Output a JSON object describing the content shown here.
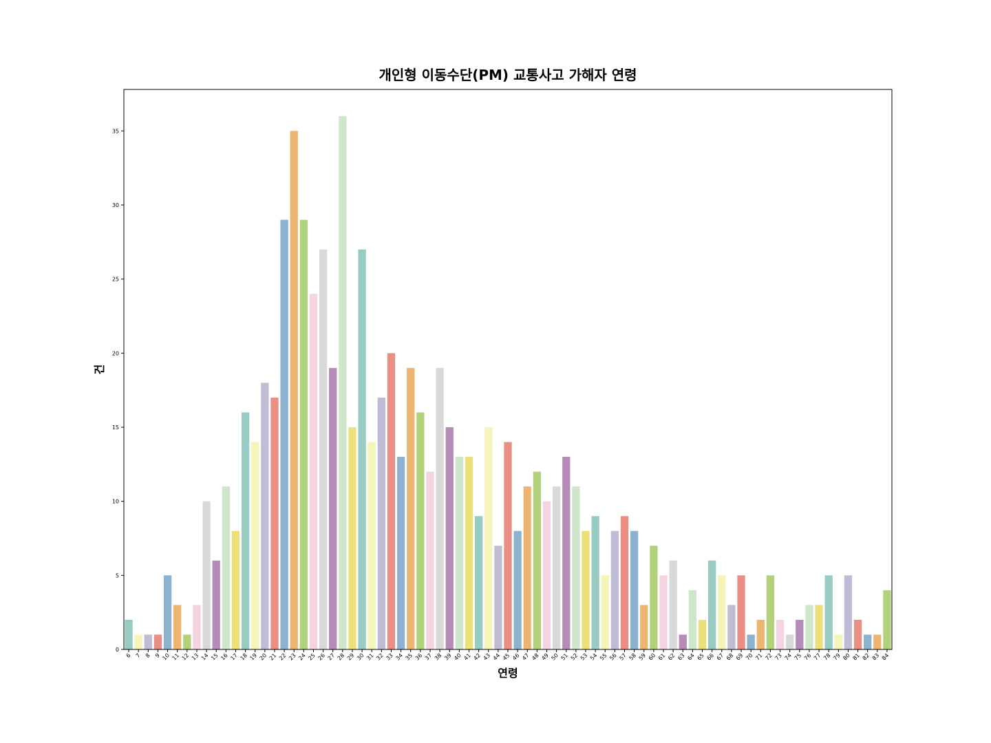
{
  "chart_data": {
    "type": "bar",
    "title": "개인형 이동수단(PM) 교통사고 가해자 연령",
    "xlabel": "연령",
    "ylabel": "건",
    "categories": [
      "6",
      "7",
      "8",
      "9",
      "10",
      "11",
      "12",
      "13",
      "14",
      "15",
      "16",
      "17",
      "18",
      "19",
      "20",
      "21",
      "22",
      "23",
      "24",
      "25",
      "26",
      "27",
      "28",
      "29",
      "30",
      "31",
      "32",
      "33",
      "34",
      "35",
      "36",
      "37",
      "38",
      "39",
      "40",
      "41",
      "42",
      "43",
      "44",
      "45",
      "46",
      "47",
      "48",
      "49",
      "50",
      "51",
      "52",
      "53",
      "54",
      "55",
      "56",
      "57",
      "58",
      "59",
      "60",
      "61",
      "62",
      "63",
      "64",
      "65",
      "66",
      "67",
      "68",
      "69",
      "70",
      "71",
      "72",
      "73",
      "74",
      "75",
      "76",
      "77",
      "78",
      "79",
      "80",
      "81",
      "82",
      "83",
      "84"
    ],
    "values": [
      2,
      1,
      1,
      1,
      5,
      3,
      1,
      3,
      10,
      6,
      11,
      8,
      16,
      14,
      18,
      17,
      29,
      35,
      29,
      24,
      27,
      19,
      36,
      15,
      27,
      14,
      17,
      20,
      13,
      19,
      16,
      12,
      19,
      15,
      13,
      13,
      9,
      15,
      7,
      14,
      8,
      11,
      12,
      10,
      11,
      13,
      11,
      8,
      9,
      5,
      8,
      9,
      8,
      3,
      7,
      5,
      6,
      1,
      4,
      2,
      6,
      5,
      3,
      5,
      1,
      2,
      5,
      2,
      1,
      2,
      3,
      3,
      5,
      1,
      5,
      2,
      1,
      1,
      4
    ],
    "colors": [
      "#98cbc1",
      "#f5f5b9",
      "#c0bcd6",
      "#eb8e84",
      "#8cb2cf",
      "#ecb572",
      "#b1d27b",
      "#f4d3e3",
      "#d9d9d9",
      "#b68bb8",
      "#cfe6ca",
      "#eddf7a"
    ],
    "ylim": [
      0,
      37.8
    ],
    "yticks": [
      0,
      5,
      10,
      15,
      20,
      25,
      30,
      35
    ],
    "grid": false
  }
}
